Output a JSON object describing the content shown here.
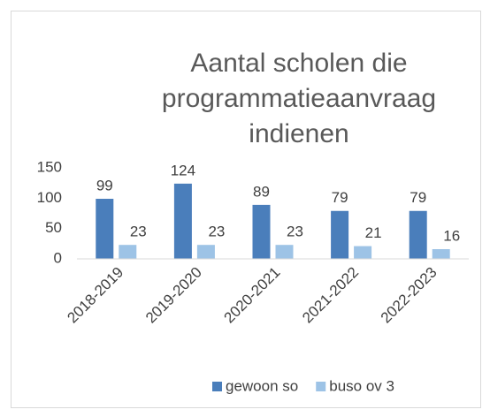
{
  "chart_data": {
    "type": "bar",
    "title": "Aantal scholen die programmatieaanvraag indienen",
    "categories": [
      "2018-2019",
      "2019-2020",
      "2020-2021",
      "2021-2022",
      "2022-2023"
    ],
    "series": [
      {
        "name": "gewoon so",
        "color": "#4a7ebb",
        "values": [
          99,
          124,
          89,
          79,
          79
        ]
      },
      {
        "name": "buso ov 3",
        "color": "#9dc3e6",
        "values": [
          23,
          23,
          23,
          21,
          16
        ]
      }
    ],
    "ylim": [
      0,
      150
    ],
    "yticks": [
      0,
      50,
      100,
      150
    ],
    "grid": false,
    "legend": "bottom"
  }
}
